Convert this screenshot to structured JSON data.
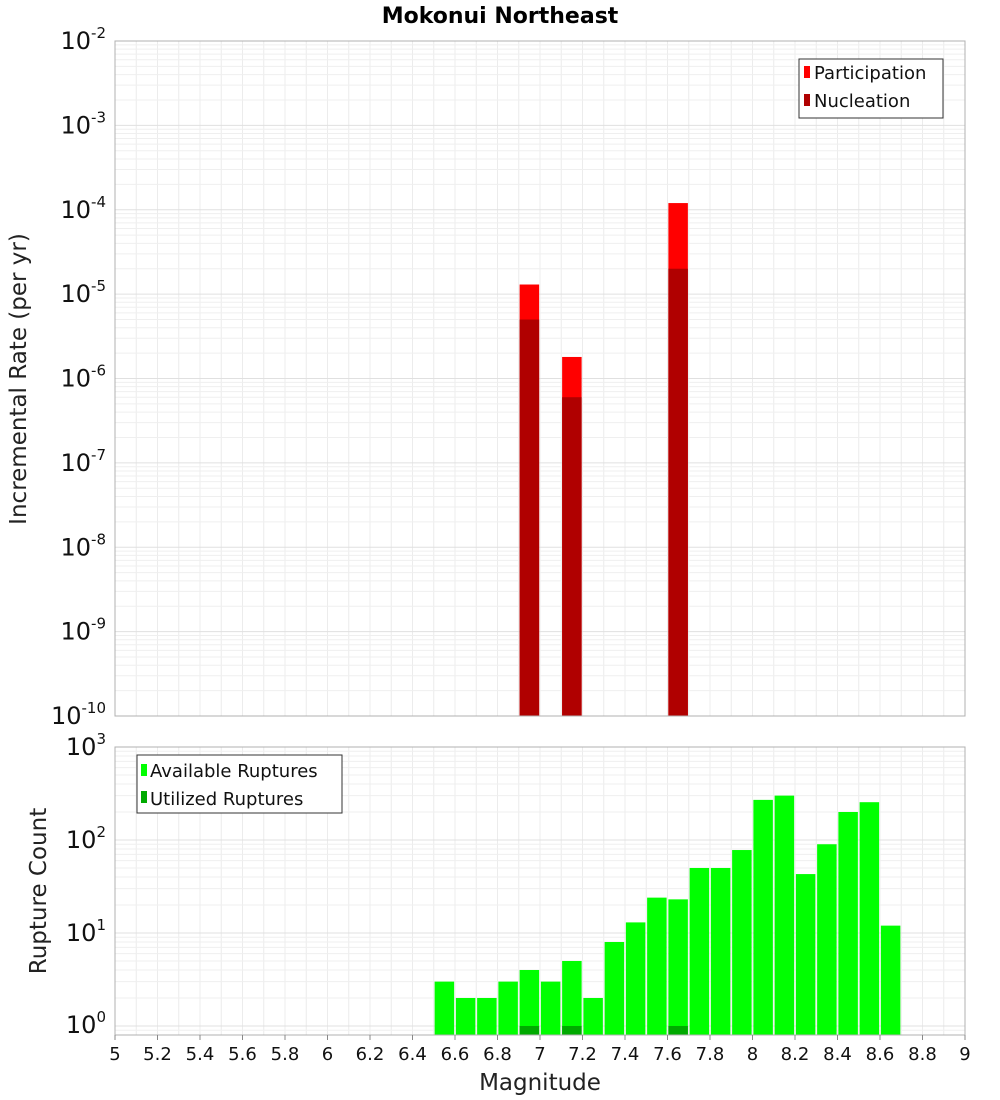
{
  "chart_data": [
    {
      "type": "bar",
      "title": "Mokonui Northeast",
      "xlabel": "Magnitude",
      "ylabel": "Incremental Rate (per yr)",
      "yscale": "log",
      "ylim": [
        1e-10,
        0.01
      ],
      "xlim": [
        5,
        9
      ],
      "ytick_exponents": [
        -2,
        -3,
        -4,
        -5,
        -6,
        -7,
        -8,
        -9,
        -10
      ],
      "legend": "top-right",
      "series": [
        {
          "name": "Participation",
          "color": "#ff0000",
          "x": [
            6.95,
            7.15,
            7.65
          ],
          "values": [
            1.3e-05,
            1.8e-06,
            0.00012
          ]
        },
        {
          "name": "Nucleation",
          "color": "#b00000",
          "x": [
            6.95,
            7.15,
            7.65
          ],
          "values": [
            5e-06,
            6e-07,
            2e-05
          ]
        }
      ]
    },
    {
      "type": "bar",
      "xlabel": "Magnitude",
      "ylabel": "Rupture Count",
      "yscale": "log",
      "ylim": [
        0.8,
        1000
      ],
      "xlim": [
        5,
        9
      ],
      "ytick_exponents": [
        3,
        2,
        1,
        0
      ],
      "xticks": [
        "5",
        "5.2",
        "5.4",
        "5.6",
        "5.8",
        "6",
        "6.2",
        "6.4",
        "6.6",
        "6.8",
        "7",
        "7.2",
        "7.4",
        "7.6",
        "7.8",
        "8",
        "8.2",
        "8.4",
        "8.6",
        "8.8",
        "9"
      ],
      "legend": "top-left",
      "series": [
        {
          "name": "Available Ruptures",
          "color": "#00ff00",
          "x": [
            6.55,
            6.65,
            6.75,
            6.85,
            6.95,
            7.05,
            7.15,
            7.25,
            7.35,
            7.45,
            7.55,
            7.65,
            7.75,
            7.85,
            7.95,
            8.05,
            8.15,
            8.25,
            8.35,
            8.45,
            8.55,
            8.65
          ],
          "values": [
            3,
            2,
            2,
            3,
            4,
            3,
            5,
            2,
            8,
            13,
            24,
            23,
            50,
            50,
            78,
            270,
            300,
            43,
            90,
            200,
            255,
            12
          ]
        },
        {
          "name": "Utilized Ruptures",
          "color": "#00aa00",
          "x": [
            6.95,
            7.15,
            7.65
          ],
          "values": [
            1,
            1,
            1
          ]
        }
      ]
    }
  ]
}
